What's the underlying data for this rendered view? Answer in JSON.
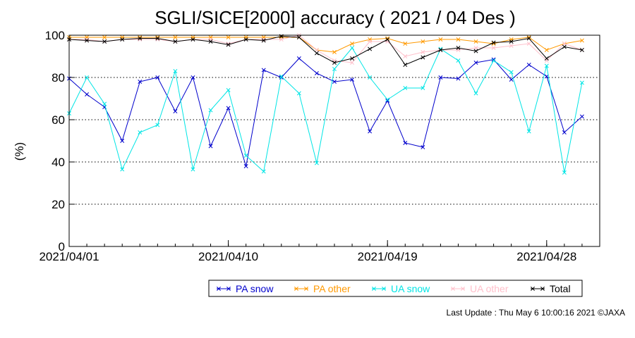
{
  "chart_data": {
    "type": "line",
    "title": "SGLI/SICE[2000] accuracy ( 2021 / 04 Des )",
    "ylabel": "(%)",
    "xlabel": "",
    "ylim": [
      0,
      100
    ],
    "yticks": [
      0,
      20,
      40,
      60,
      80,
      100
    ],
    "xlim": [
      "2021/04/01",
      "2021/05/01"
    ],
    "xtick_labels": [
      "2021/04/01",
      "2021/04/10",
      "2021/04/19",
      "2021/04/28"
    ],
    "grid": "dotted horizontal at 40, 60, 80",
    "x": [
      "2021/04/01",
      "2021/04/02",
      "2021/04/03",
      "2021/04/04",
      "2021/04/05",
      "2021/04/06",
      "2021/04/07",
      "2021/04/08",
      "2021/04/09",
      "2021/04/10",
      "2021/04/11",
      "2021/04/12",
      "2021/04/13",
      "2021/04/14",
      "2021/04/15",
      "2021/04/16",
      "2021/04/17",
      "2021/04/18",
      "2021/04/19",
      "2021/04/20",
      "2021/04/21",
      "2021/04/22",
      "2021/04/23",
      "2021/04/24",
      "2021/04/25",
      "2021/04/26",
      "2021/04/27",
      "2021/04/28",
      "2021/04/29",
      "2021/04/30"
    ],
    "series": [
      {
        "name": "PA snow",
        "color": "#0000cc",
        "values": [
          79.5,
          72,
          66,
          50,
          78,
          80,
          64,
          80,
          47.5,
          65.5,
          38,
          83.5,
          80,
          89,
          82,
          78,
          79,
          54.5,
          69,
          49,
          47,
          80,
          79.5,
          87,
          88.5,
          79,
          86,
          80.5,
          54,
          61.5
        ]
      },
      {
        "name": "PA other",
        "color": "#ff9900",
        "values": [
          99,
          99,
          99,
          99,
          99,
          99,
          99,
          99,
          99,
          99,
          99,
          99,
          99,
          99,
          93,
          92,
          96,
          98,
          98.5,
          96,
          97,
          98,
          98,
          97,
          96,
          98,
          99,
          93,
          96,
          97.5
        ]
      },
      {
        "name": "UA snow",
        "color": "#00e5e5",
        "values": [
          63,
          80,
          67.5,
          36.5,
          54,
          57.5,
          83,
          36.5,
          64.5,
          74,
          43,
          35.5,
          80.5,
          72.5,
          39.5,
          84,
          94,
          80,
          69.5,
          75,
          75,
          93.5,
          88,
          72.5,
          88,
          82.5,
          54.5,
          85.5,
          35,
          77.5
        ]
      },
      {
        "name": "UA other",
        "color": "#ffc0cb",
        "values": [
          98,
          98,
          97,
          98,
          98,
          98,
          97,
          98,
          98,
          96,
          98,
          98,
          98,
          100,
          93,
          88,
          87,
          97,
          97,
          90,
          92,
          93,
          93,
          94,
          94,
          95,
          96,
          88,
          96,
          93
        ]
      },
      {
        "name": "Total",
        "color": "#000000",
        "values": [
          98,
          97.5,
          97,
          98,
          98.5,
          98.5,
          97,
          98,
          97,
          95.5,
          98,
          97.5,
          99.5,
          99,
          91.5,
          87,
          89,
          93.5,
          98,
          86,
          89.5,
          93,
          94,
          92.5,
          96.5,
          97,
          98.5,
          89,
          94.5,
          93
        ]
      }
    ]
  },
  "footer": {
    "text": "Last Update : Thu May  6 10:00:16 2021 ©JAXA"
  }
}
